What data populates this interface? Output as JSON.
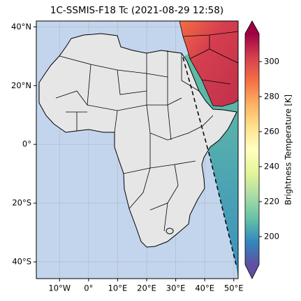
{
  "title": "1C-SSMIS-F18 Tc (2021-08-29 12:58)",
  "map": {
    "xlim": [
      -18,
      51.5
    ],
    "ylim": [
      -45.7,
      42
    ],
    "grid": true,
    "xticks": [
      {
        "value": -10,
        "label": "10°W"
      },
      {
        "value": 0,
        "label": "0°"
      },
      {
        "value": 10,
        "label": "10°E"
      },
      {
        "value": 20,
        "label": "20°E"
      },
      {
        "value": 30,
        "label": "30°E"
      },
      {
        "value": 40,
        "label": "40°E"
      },
      {
        "value": 50,
        "label": "50°E"
      }
    ],
    "yticks": [
      {
        "value": 40,
        "label": "40°N"
      },
      {
        "value": 20,
        "label": "20°N"
      },
      {
        "value": 0,
        "label": "0°"
      },
      {
        "value": -20,
        "label": "20°S"
      },
      {
        "value": -40,
        "label": "40°S"
      }
    ]
  },
  "colorbar": {
    "label": "Brightness Temperature [K]",
    "clim": [
      184,
      316
    ],
    "ticks": [
      200,
      220,
      240,
      260,
      280,
      300
    ],
    "colormap": [
      "#5e4fa2",
      "#3288bd",
      "#66c2a5",
      "#abdda4",
      "#e6f598",
      "#ffffbf",
      "#fee08b",
      "#fdae61",
      "#f46d43",
      "#d53e4f",
      "#9e0142"
    ]
  }
}
